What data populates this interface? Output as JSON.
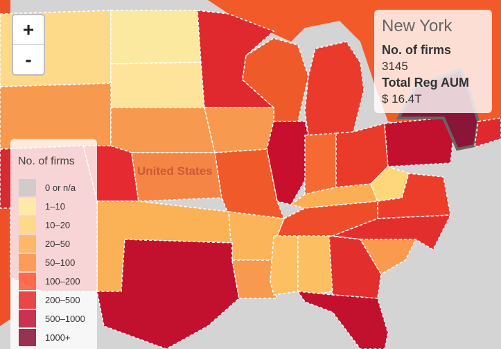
{
  "zoom": {
    "zoom_in": "+",
    "zoom_out": "-"
  },
  "map": {
    "label": "United States"
  },
  "tooltip": {
    "title": "New York",
    "firms_label": "No. of firms",
    "firms_value": "3145",
    "aum_label": "Total Reg AUM",
    "aum_value": "$ 16.4T"
  },
  "legend": {
    "title": "No. of firms",
    "items": [
      {
        "label": "0 or n/a",
        "color": "#c8c8c8"
      },
      {
        "label": "1–10",
        "color": "#ffeda0"
      },
      {
        "label": "10–20",
        "color": "#fed976"
      },
      {
        "label": "20–50",
        "color": "#feb24c"
      },
      {
        "label": "50–100",
        "color": "#fd8d3c"
      },
      {
        "label": "100–200",
        "color": "#fc4e2a"
      },
      {
        "label": "200–500",
        "color": "#e31a1c"
      },
      {
        "label": "500–1000",
        "color": "#bd0026"
      },
      {
        "label": "1000+",
        "color": "#800026"
      }
    ]
  }
}
